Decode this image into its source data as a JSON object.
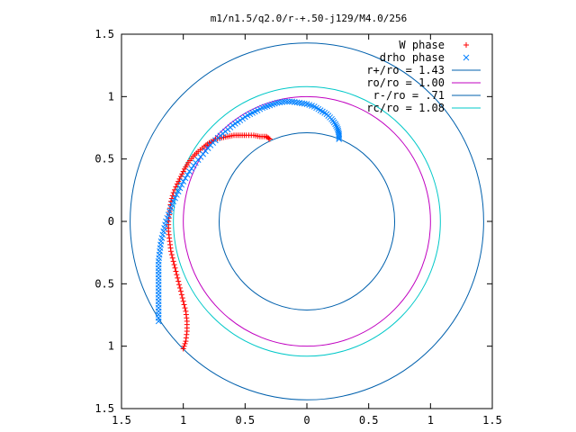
{
  "chart_data": {
    "type": "scatter",
    "title": "m1/n1.5/q2.0/r-+.50-j129/M4.0/256",
    "xlabel": "",
    "ylabel": "",
    "xlim": [
      -1.5,
      1.5
    ],
    "ylim": [
      -1.5,
      1.5
    ],
    "x_tick_values": [
      -1.5,
      -1,
      -0.5,
      0,
      0.5,
      1,
      1.5
    ],
    "x_tick_labels": [
      "1.5",
      "1",
      "0.5",
      "0",
      "0.5",
      "1",
      "1.5"
    ],
    "y_tick_values": [
      -1.5,
      -1,
      -0.5,
      0,
      0.5,
      1,
      1.5
    ],
    "y_tick_labels": [
      "1.5",
      "1",
      "0.5",
      "0",
      "0.5",
      "1",
      "1.5"
    ],
    "grid": false,
    "legend_position": "top-right",
    "series": [
      {
        "name": "W phase",
        "marker": "plus",
        "color": "#ff0000",
        "x": [
          -1.0,
          -0.98,
          -0.97,
          -0.97,
          -0.98,
          -1.0,
          -1.02,
          -1.04,
          -1.06,
          -1.08,
          -1.1,
          -1.11,
          -1.12,
          -1.12,
          -1.11,
          -1.1,
          -1.08,
          -1.05,
          -1.02,
          -0.99,
          -0.96,
          -0.92,
          -0.88,
          -0.83,
          -0.79,
          -0.74,
          -0.69,
          -0.64,
          -0.59,
          -0.54,
          -0.49,
          -0.43,
          -0.38,
          -0.33,
          -0.3
        ],
        "y": [
          -1.02,
          -0.96,
          -0.88,
          -0.8,
          -0.72,
          -0.64,
          -0.56,
          -0.48,
          -0.4,
          -0.32,
          -0.24,
          -0.16,
          -0.08,
          0.0,
          0.08,
          0.16,
          0.23,
          0.3,
          0.36,
          0.42,
          0.47,
          0.52,
          0.56,
          0.6,
          0.63,
          0.66,
          0.67,
          0.68,
          0.69,
          0.69,
          0.69,
          0.69,
          0.68,
          0.68,
          0.66
        ]
      },
      {
        "name": "drho phase",
        "marker": "x",
        "color": "#0080ff",
        "x": [
          -1.2,
          -1.2,
          -1.2,
          -1.2,
          -1.2,
          -1.2,
          -1.2,
          -1.19,
          -1.18,
          -1.16,
          -1.14,
          -1.11,
          -1.08,
          -1.04,
          -1.0,
          -0.95,
          -0.9,
          -0.84,
          -0.78,
          -0.72,
          -0.66,
          -0.6,
          -0.54,
          -0.48,
          -0.42,
          -0.36,
          -0.3,
          -0.24,
          -0.18,
          -0.12,
          -0.06,
          0.0,
          0.06,
          0.11,
          0.16,
          0.2,
          0.23,
          0.25,
          0.26,
          0.26
        ],
        "y": [
          -0.8,
          -0.72,
          -0.64,
          -0.56,
          -0.48,
          -0.4,
          -0.32,
          -0.24,
          -0.16,
          -0.08,
          0.0,
          0.08,
          0.16,
          0.24,
          0.32,
          0.4,
          0.47,
          0.54,
          0.61,
          0.67,
          0.72,
          0.77,
          0.81,
          0.85,
          0.88,
          0.91,
          0.93,
          0.95,
          0.96,
          0.96,
          0.95,
          0.94,
          0.92,
          0.89,
          0.86,
          0.82,
          0.78,
          0.74,
          0.7,
          0.66
        ]
      }
    ],
    "circles": [
      {
        "name": "r+/ro = 1.43",
        "radius": 1.43,
        "color": "#0060ad"
      },
      {
        "name": "ro/ro = 1.00",
        "radius": 1.0,
        "color": "#c000c0"
      },
      {
        "name": "r-/ro = .71",
        "radius": 0.71,
        "color": "#0060ad"
      },
      {
        "name": "rc/ro = 1.08",
        "radius": 1.08,
        "color": "#00c8c8"
      }
    ]
  }
}
